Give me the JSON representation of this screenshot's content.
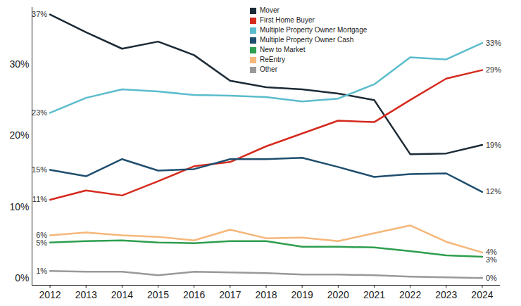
{
  "chart_data": {
    "type": "line",
    "legend": "top",
    "x": [
      2012,
      2013,
      2014,
      2015,
      2016,
      2017,
      2018,
      2019,
      2020,
      2021,
      2022,
      2023,
      2024
    ],
    "xlim": [
      2011.5,
      2024.5
    ],
    "xticks": [
      2012,
      2013,
      2014,
      2015,
      2016,
      2017,
      2018,
      2019,
      2020,
      2021,
      2022,
      2023,
      2024
    ],
    "ylim": [
      -1,
      38
    ],
    "yticks": [
      {
        "value": 0,
        "label": "0%"
      },
      {
        "value": 10,
        "label": "10%"
      },
      {
        "value": 20,
        "label": "20%"
      },
      {
        "value": 30,
        "label": "30%"
      }
    ],
    "series": [
      {
        "name": "Mover",
        "color": "#1c2b36",
        "values": [
          37,
          34.5,
          32.2,
          33.2,
          31.3,
          27.7,
          26.8,
          26.5,
          25.9,
          25,
          17.4,
          17.5,
          18.7
        ],
        "value_labels": [
          "37%",
          null,
          null,
          null,
          null,
          null,
          null,
          null,
          null,
          null,
          null,
          null,
          "19%"
        ]
      },
      {
        "name": "First Home Buyer",
        "color": "#d62a1e",
        "values": [
          11,
          12.3,
          11.6,
          13.6,
          15.7,
          16.3,
          18.5,
          20.3,
          22.1,
          21.9,
          25,
          28,
          29.2
        ],
        "value_labels": [
          "11%",
          null,
          null,
          null,
          null,
          null,
          null,
          null,
          null,
          null,
          null,
          null,
          "29%"
        ]
      },
      {
        "name": "Multiple Property Owner Mortgage",
        "color": "#5bbccc",
        "values": [
          23.2,
          25.3,
          26.5,
          26.2,
          25.7,
          25.6,
          25.4,
          24.8,
          25.2,
          27.2,
          31,
          30.7,
          33
        ],
        "value_labels": [
          "23%",
          null,
          null,
          null,
          null,
          null,
          null,
          null,
          null,
          null,
          null,
          null,
          "33%"
        ]
      },
      {
        "name": "Multiple Property Owner Cash",
        "color": "#1f4e6e",
        "values": [
          15.2,
          14.3,
          16.7,
          15.1,
          15.3,
          16.7,
          16.7,
          16.9,
          15.6,
          14.2,
          14.6,
          14.7,
          12.1
        ],
        "value_labels": [
          "15%",
          null,
          null,
          null,
          null,
          null,
          null,
          null,
          null,
          null,
          null,
          null,
          "12%"
        ]
      },
      {
        "name": "New to Market",
        "color": "#2e9e4f",
        "values": [
          5,
          5.2,
          5.3,
          5,
          4.9,
          5.2,
          5.2,
          4.4,
          4.4,
          4.3,
          3.8,
          3.2,
          3
        ],
        "value_labels": [
          "5%",
          null,
          null,
          null,
          null,
          null,
          null,
          null,
          null,
          null,
          null,
          null,
          "3%"
        ]
      },
      {
        "name": "ReEntry",
        "color": "#f5b77a",
        "values": [
          6,
          6.4,
          6,
          5.8,
          5.3,
          6.8,
          5.6,
          5.7,
          5.2,
          6.3,
          7.4,
          5.1,
          3.6
        ],
        "value_labels": [
          "6%",
          null,
          null,
          null,
          null,
          null,
          null,
          null,
          null,
          null,
          null,
          null,
          "4%"
        ]
      },
      {
        "name": "Other",
        "color": "#999999",
        "values": [
          1,
          0.9,
          0.9,
          0.4,
          0.9,
          0.8,
          0.7,
          0.5,
          0.5,
          0.4,
          0.2,
          0.1,
          0
        ],
        "value_labels": [
          "1%",
          null,
          null,
          null,
          null,
          null,
          null,
          null,
          null,
          null,
          null,
          null,
          "0%"
        ]
      }
    ]
  }
}
